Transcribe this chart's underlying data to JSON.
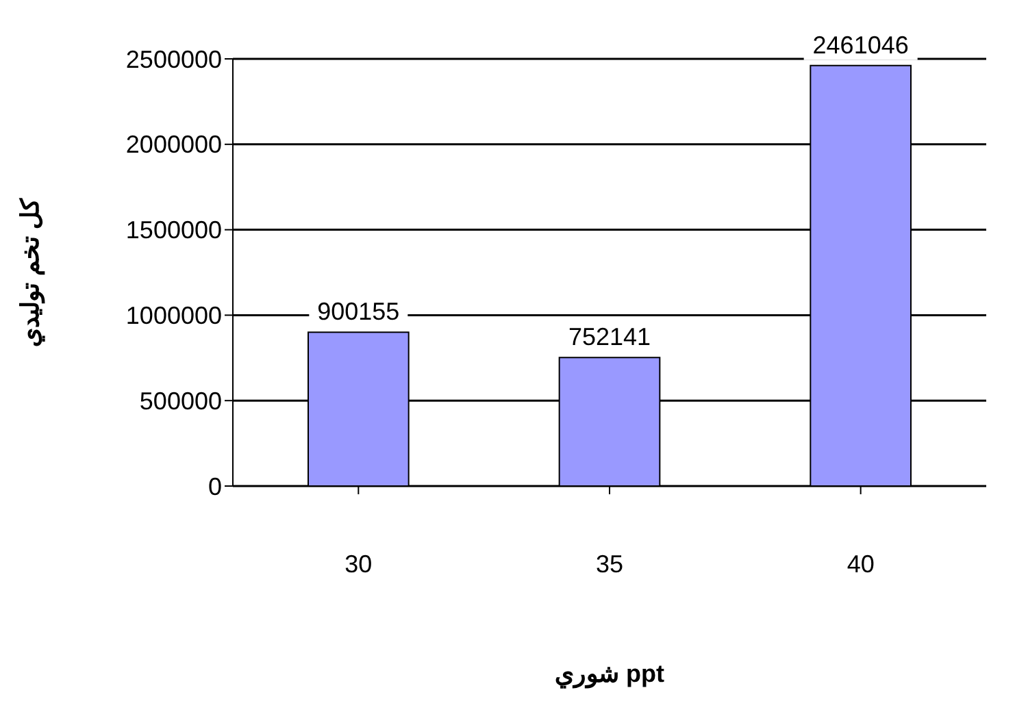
{
  "chart_data": {
    "type": "bar",
    "xlabel": "شوري ppt",
    "ylabel": "كل تخم توليدي",
    "categories": [
      "30",
      "35",
      "40"
    ],
    "values": [
      900155,
      752141,
      2461046
    ],
    "color": "#9999ff",
    "ylim": [
      0,
      2500000
    ],
    "yticks": [
      0,
      500000,
      1000000,
      1500000,
      2000000,
      2500000
    ],
    "grid": "y",
    "data_labels": true
  }
}
